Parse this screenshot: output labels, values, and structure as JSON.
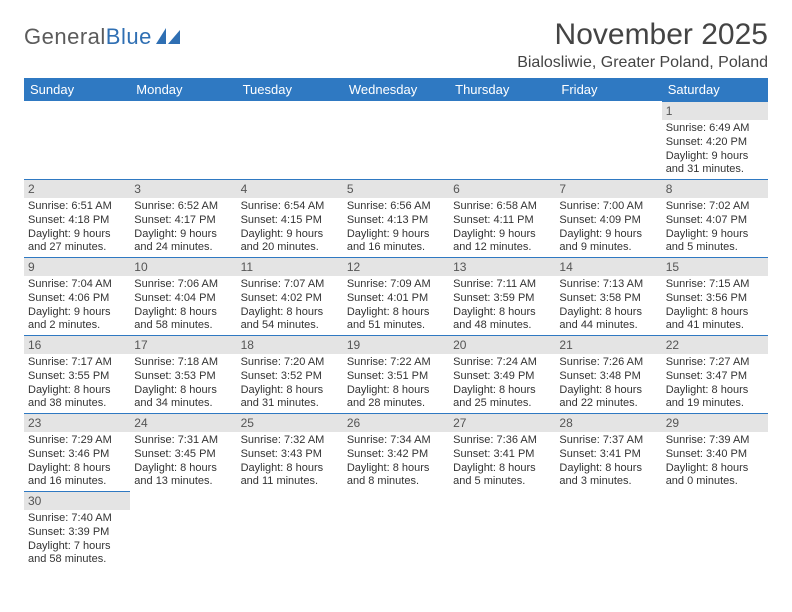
{
  "logo": {
    "text1": "General",
    "text2": "Blue"
  },
  "title": "November 2025",
  "location": "Bialosliwie, Greater Poland, Poland",
  "colors": {
    "header_bg": "#2f79c2",
    "header_text": "#ffffff",
    "daynum_bg": "#e4e4e4",
    "border_blue": "#2f79c2",
    "text": "#333333"
  },
  "weekdays": [
    "Sunday",
    "Monday",
    "Tuesday",
    "Wednesday",
    "Thursday",
    "Friday",
    "Saturday"
  ],
  "weeks": [
    [
      null,
      null,
      null,
      null,
      null,
      null,
      {
        "d": "1",
        "sr": "6:49 AM",
        "ss": "4:20 PM",
        "dl": "9 hours and 31 minutes."
      }
    ],
    [
      {
        "d": "2",
        "sr": "6:51 AM",
        "ss": "4:18 PM",
        "dl": "9 hours and 27 minutes."
      },
      {
        "d": "3",
        "sr": "6:52 AM",
        "ss": "4:17 PM",
        "dl": "9 hours and 24 minutes."
      },
      {
        "d": "4",
        "sr": "6:54 AM",
        "ss": "4:15 PM",
        "dl": "9 hours and 20 minutes."
      },
      {
        "d": "5",
        "sr": "6:56 AM",
        "ss": "4:13 PM",
        "dl": "9 hours and 16 minutes."
      },
      {
        "d": "6",
        "sr": "6:58 AM",
        "ss": "4:11 PM",
        "dl": "9 hours and 12 minutes."
      },
      {
        "d": "7",
        "sr": "7:00 AM",
        "ss": "4:09 PM",
        "dl": "9 hours and 9 minutes."
      },
      {
        "d": "8",
        "sr": "7:02 AM",
        "ss": "4:07 PM",
        "dl": "9 hours and 5 minutes."
      }
    ],
    [
      {
        "d": "9",
        "sr": "7:04 AM",
        "ss": "4:06 PM",
        "dl": "9 hours and 2 minutes."
      },
      {
        "d": "10",
        "sr": "7:06 AM",
        "ss": "4:04 PM",
        "dl": "8 hours and 58 minutes."
      },
      {
        "d": "11",
        "sr": "7:07 AM",
        "ss": "4:02 PM",
        "dl": "8 hours and 54 minutes."
      },
      {
        "d": "12",
        "sr": "7:09 AM",
        "ss": "4:01 PM",
        "dl": "8 hours and 51 minutes."
      },
      {
        "d": "13",
        "sr": "7:11 AM",
        "ss": "3:59 PM",
        "dl": "8 hours and 48 minutes."
      },
      {
        "d": "14",
        "sr": "7:13 AM",
        "ss": "3:58 PM",
        "dl": "8 hours and 44 minutes."
      },
      {
        "d": "15",
        "sr": "7:15 AM",
        "ss": "3:56 PM",
        "dl": "8 hours and 41 minutes."
      }
    ],
    [
      {
        "d": "16",
        "sr": "7:17 AM",
        "ss": "3:55 PM",
        "dl": "8 hours and 38 minutes."
      },
      {
        "d": "17",
        "sr": "7:18 AM",
        "ss": "3:53 PM",
        "dl": "8 hours and 34 minutes."
      },
      {
        "d": "18",
        "sr": "7:20 AM",
        "ss": "3:52 PM",
        "dl": "8 hours and 31 minutes."
      },
      {
        "d": "19",
        "sr": "7:22 AM",
        "ss": "3:51 PM",
        "dl": "8 hours and 28 minutes."
      },
      {
        "d": "20",
        "sr": "7:24 AM",
        "ss": "3:49 PM",
        "dl": "8 hours and 25 minutes."
      },
      {
        "d": "21",
        "sr": "7:26 AM",
        "ss": "3:48 PM",
        "dl": "8 hours and 22 minutes."
      },
      {
        "d": "22",
        "sr": "7:27 AM",
        "ss": "3:47 PM",
        "dl": "8 hours and 19 minutes."
      }
    ],
    [
      {
        "d": "23",
        "sr": "7:29 AM",
        "ss": "3:46 PM",
        "dl": "8 hours and 16 minutes."
      },
      {
        "d": "24",
        "sr": "7:31 AM",
        "ss": "3:45 PM",
        "dl": "8 hours and 13 minutes."
      },
      {
        "d": "25",
        "sr": "7:32 AM",
        "ss": "3:43 PM",
        "dl": "8 hours and 11 minutes."
      },
      {
        "d": "26",
        "sr": "7:34 AM",
        "ss": "3:42 PM",
        "dl": "8 hours and 8 minutes."
      },
      {
        "d": "27",
        "sr": "7:36 AM",
        "ss": "3:41 PM",
        "dl": "8 hours and 5 minutes."
      },
      {
        "d": "28",
        "sr": "7:37 AM",
        "ss": "3:41 PM",
        "dl": "8 hours and 3 minutes."
      },
      {
        "d": "29",
        "sr": "7:39 AM",
        "ss": "3:40 PM",
        "dl": "8 hours and 0 minutes."
      }
    ],
    [
      {
        "d": "30",
        "sr": "7:40 AM",
        "ss": "3:39 PM",
        "dl": "7 hours and 58 minutes."
      },
      null,
      null,
      null,
      null,
      null,
      null
    ]
  ],
  "labels": {
    "sunrise": "Sunrise:",
    "sunset": "Sunset:",
    "daylight": "Daylight:"
  }
}
